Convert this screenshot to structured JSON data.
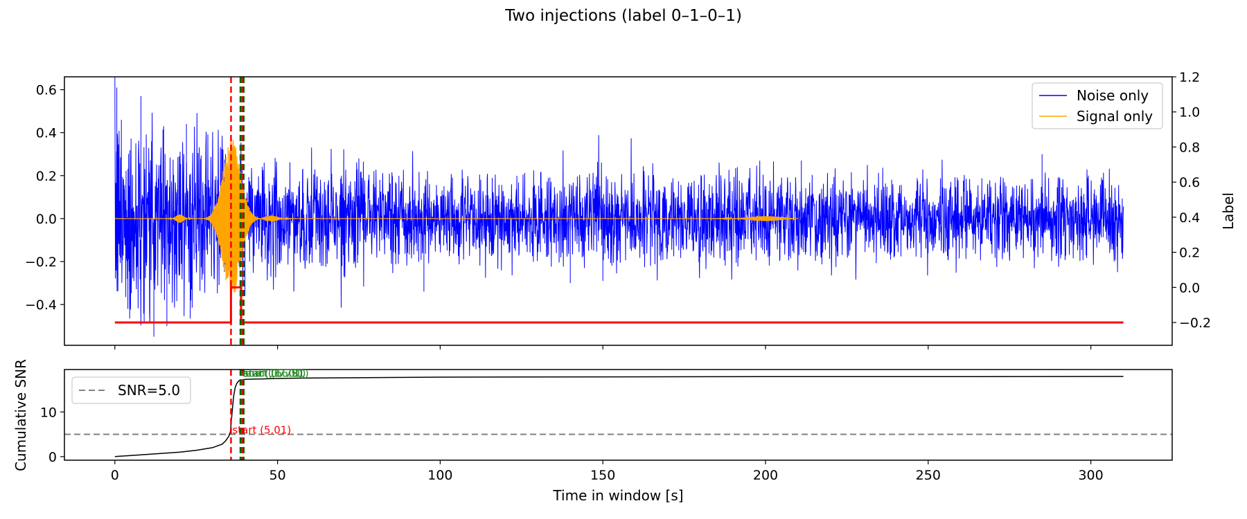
{
  "figure": {
    "title": "Two injections (label 0–1–0–1)"
  },
  "colors": {
    "noise": "#0000ff",
    "signal": "#ffa500",
    "label": "#ff0000",
    "start_line": "#ff0000",
    "green_line": "#006400",
    "snr": "#000000",
    "threshold": "#808080",
    "annot_start": "#ff0000",
    "annot_green": "#228b22"
  },
  "chart_data": [
    {
      "type": "line",
      "panel": "top",
      "xlim": [
        -15.5,
        325
      ],
      "ylim": [
        -0.59,
        0.66
      ],
      "y2lim": [
        -0.33,
        1.2
      ],
      "xticks": [
        0,
        50,
        100,
        150,
        200,
        250,
        300
      ],
      "yticks": [
        -0.4,
        -0.2,
        0.0,
        0.2,
        0.4,
        0.6
      ],
      "y2ticks": [
        -0.2,
        0.0,
        0.2,
        0.4,
        0.6,
        0.8,
        1.0,
        1.2
      ],
      "y2label": "Label",
      "ytick_labels": [
        "−0.4",
        "−0.2",
        "0.0",
        "0.2",
        "0.4",
        "0.6"
      ],
      "y2tick_labels": [
        "−0.2",
        "0.0",
        "0.2",
        "0.4",
        "0.6",
        "0.8",
        "1.0",
        "1.2"
      ],
      "legend": {
        "position": "top-right",
        "entries": [
          "Noise only",
          "Signal only"
        ]
      },
      "series": [
        {
          "name": "Noise only",
          "x_range": [
            0,
            310
          ],
          "envelope_abs": [
            [
              0,
              0.45
            ],
            [
              2,
              0.42
            ],
            [
              5,
              0.4
            ],
            [
              10,
              0.38
            ],
            [
              20,
              0.34
            ],
            [
              30,
              0.3
            ],
            [
              40,
              0.27
            ],
            [
              60,
              0.2
            ],
            [
              100,
              0.18
            ],
            [
              150,
              0.18
            ],
            [
              200,
              0.17
            ],
            [
              250,
              0.16
            ],
            [
              300,
              0.17
            ],
            [
              310,
              0.16
            ]
          ],
          "peaks": [
            [
              0.6,
              0.61
            ],
            [
              2,
              0.46
            ],
            [
              4,
              -0.42
            ],
            [
              8,
              0.57
            ],
            [
              9,
              -0.48
            ],
            [
              12,
              -0.55
            ],
            [
              15,
              0.43
            ],
            [
              16,
              -0.5
            ],
            [
              22,
              0.44
            ],
            [
              34,
              0.3
            ],
            [
              40,
              -0.36
            ],
            [
              55,
              -0.33
            ],
            [
              95,
              -0.34
            ],
            [
              140,
              -0.3
            ],
            [
              150,
              -0.29
            ],
            [
              211,
              0.27
            ],
            [
              285,
              0.3
            ]
          ]
        },
        {
          "name": "Signal only",
          "bursts": [
            {
              "t0": 27,
              "t1": 46,
              "center": 36,
              "amplitude": 0.37
            },
            {
              "t0": 16,
              "t1": 24,
              "center": 20,
              "amplitude": 0.02
            },
            {
              "t0": 46,
              "t1": 60,
              "center": 48,
              "amplitude": 0.015
            },
            {
              "t0": 175,
              "t1": 210,
              "center": 200,
              "amplitude": 0.012
            }
          ],
          "x_end": 210
        },
        {
          "name": "Label",
          "axis": "right",
          "x": [
            0,
            35.7,
            35.7,
            38.8,
            38.8,
            39.4,
            39.4,
            310
          ],
          "y": [
            -0.2,
            -0.2,
            0.0,
            0.0,
            -0.2,
            -0.2,
            -0.2,
            -0.2
          ]
        }
      ],
      "vlines": [
        {
          "x": 35.7,
          "color_key": "start_line",
          "style": "dashed"
        },
        {
          "x": 38.6,
          "color_key": "green_line",
          "style": "dashed"
        },
        {
          "x": 39.1,
          "color_key": "label",
          "style": "dashed"
        },
        {
          "x": 39.6,
          "color_key": "green_line",
          "style": "dashed"
        }
      ]
    },
    {
      "type": "line",
      "panel": "bottom",
      "xlim": [
        -15.5,
        325
      ],
      "ylim": [
        -0.8,
        19.5
      ],
      "xticks": [
        0,
        50,
        100,
        150,
        200,
        250,
        300
      ],
      "yticks": [
        0,
        10
      ],
      "xlabel": "Time in window [s]",
      "ylabel": "Cumulative SNR",
      "legend": {
        "position": "top-left",
        "entries": [
          "SNR=5.0"
        ]
      },
      "threshold": 5.0,
      "series": [
        {
          "name": "Cumulative SNR",
          "x": [
            0,
            5,
            10,
            15,
            20,
            25,
            30,
            33,
            34,
            35,
            35.5,
            36,
            36.5,
            37,
            37.5,
            38,
            38.5,
            39,
            40,
            42,
            45,
            50,
            60,
            100,
            200,
            250,
            310
          ],
          "y": [
            0,
            0.25,
            0.5,
            0.75,
            1.0,
            1.4,
            2.0,
            2.8,
            3.5,
            4.5,
            5.5,
            9.5,
            13.5,
            15.5,
            16.4,
            16.9,
            17.1,
            17.2,
            17.3,
            17.35,
            17.4,
            17.5,
            17.6,
            17.8,
            17.9,
            17.9,
            17.95
          ]
        }
      ],
      "vlines": [
        {
          "x": 35.7,
          "color_key": "start_line",
          "style": "dashed"
        },
        {
          "x": 38.6,
          "color_key": "green_line",
          "style": "dashed"
        },
        {
          "x": 39.1,
          "color_key": "label",
          "style": "dashed"
        },
        {
          "x": 39.6,
          "color_key": "green_line",
          "style": "dashed"
        }
      ],
      "annotations": [
        {
          "text": "start (5.01)",
          "x": 35.7,
          "y": 5.01,
          "color_key": "annot_start"
        },
        {
          "text": "end (16.78)",
          "x": 38.6,
          "y": 17.7,
          "color_key": "annot_green"
        },
        {
          "text": "start (16.91)",
          "x": 39.1,
          "y": 17.7,
          "color_key": "annot_green"
        },
        {
          "text": "end (17.01)",
          "x": 39.6,
          "y": 17.7,
          "color_key": "annot_green"
        }
      ]
    }
  ]
}
